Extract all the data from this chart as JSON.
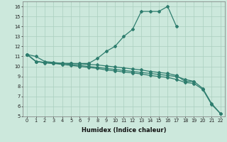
{
  "xlabel": "Humidex (Indice chaleur)",
  "color": "#2e7d6e",
  "bg_color": "#cce8dc",
  "grid_color": "#aacfbf",
  "ylim": [
    5,
    16.5
  ],
  "xlim": [
    -0.5,
    22.5
  ],
  "yticks": [
    5,
    6,
    7,
    8,
    9,
    10,
    11,
    12,
    13,
    14,
    15,
    16
  ],
  "xticks": [
    0,
    1,
    2,
    3,
    4,
    5,
    6,
    7,
    8,
    9,
    10,
    11,
    12,
    13,
    14,
    15,
    16,
    17,
    18,
    19,
    20,
    21,
    22
  ],
  "line1_x": [
    0,
    1,
    2,
    3,
    4,
    5,
    6,
    7,
    8,
    9,
    10,
    11,
    12,
    13,
    14,
    15,
    16,
    17
  ],
  "line1_y": [
    11.2,
    11.0,
    10.5,
    10.4,
    10.3,
    10.3,
    10.3,
    10.3,
    10.8,
    11.5,
    12.0,
    13.0,
    13.7,
    15.5,
    15.5,
    15.5,
    16.0,
    14.0
  ],
  "line2_x": [
    0,
    1,
    2,
    3,
    4,
    5,
    6,
    7,
    8,
    9,
    10,
    11,
    12,
    13,
    14,
    15,
    16,
    17,
    18,
    19
  ],
  "line2_y": [
    11.2,
    10.5,
    10.4,
    10.3,
    10.3,
    10.3,
    10.25,
    10.2,
    10.15,
    10.05,
    9.95,
    9.85,
    9.75,
    9.65,
    9.5,
    9.4,
    9.3,
    9.1,
    8.5,
    8.5
  ],
  "line3_x": [
    0,
    1,
    2,
    3,
    4,
    5,
    6,
    7,
    8,
    9,
    10,
    11,
    12,
    13,
    14,
    15,
    16,
    17,
    18,
    19,
    20,
    21,
    22
  ],
  "line3_y": [
    11.2,
    10.5,
    10.4,
    10.35,
    10.3,
    10.2,
    10.1,
    10.0,
    9.9,
    9.8,
    9.7,
    9.6,
    9.5,
    9.4,
    9.3,
    9.2,
    9.1,
    9.0,
    8.7,
    8.5,
    7.8,
    6.3,
    5.3
  ],
  "line4_x": [
    0,
    1,
    2,
    3,
    4,
    5,
    6,
    7,
    8,
    9,
    10,
    11,
    12,
    13,
    14,
    15,
    16,
    17,
    18,
    19,
    20,
    21,
    22
  ],
  "line4_y": [
    11.2,
    10.5,
    10.35,
    10.3,
    10.2,
    10.1,
    10.0,
    9.9,
    9.8,
    9.65,
    9.55,
    9.45,
    9.35,
    9.25,
    9.1,
    9.0,
    8.9,
    8.7,
    8.4,
    8.3,
    7.7,
    6.2,
    5.3
  ]
}
